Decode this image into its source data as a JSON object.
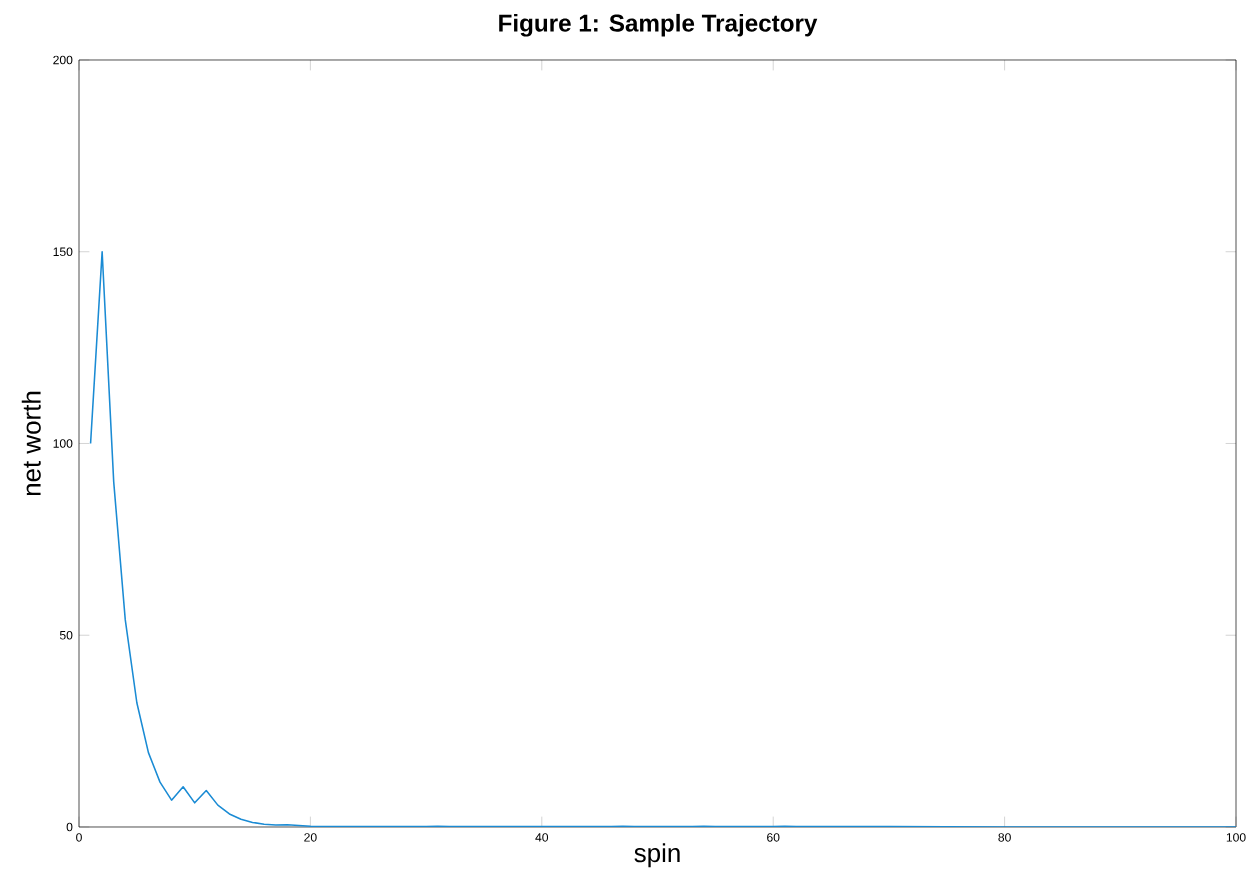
{
  "chart_data": {
    "type": "line",
    "title": "Figure 1: Sample Trajectory",
    "xlabel": "spin",
    "ylabel": "net worth",
    "x": [
      1,
      2,
      3,
      4,
      5,
      6,
      7,
      8,
      9,
      10,
      11,
      12,
      13,
      14,
      15,
      16,
      17,
      18,
      19,
      20,
      25,
      30,
      31,
      32,
      40,
      46,
      47,
      48,
      53,
      54,
      55,
      60,
      61,
      62,
      70,
      80,
      90,
      100
    ],
    "series": [
      {
        "color": "#1a8bd4",
        "values": [
          100,
          150,
          90,
          54,
          32.4,
          19.4,
          11.7,
          7,
          10.5,
          6.3,
          9.5,
          5.7,
          3.4,
          2,
          1.2,
          0.7,
          0.5,
          0.6,
          0.4,
          0.2,
          0.1,
          0.1,
          0.2,
          0.1,
          0.1,
          0.1,
          0.2,
          0.1,
          0.1,
          0.2,
          0.1,
          0.1,
          0.2,
          0.1,
          0.1,
          0,
          0,
          0
        ]
      }
    ],
    "xlim": [
      0,
      100
    ],
    "ylim": [
      0,
      200
    ],
    "xticks": [
      0,
      20,
      40,
      60,
      80,
      100
    ],
    "yticks": [
      0,
      50,
      100,
      150,
      200
    ],
    "grid": false,
    "marker": "none",
    "line_style": "solid"
  }
}
